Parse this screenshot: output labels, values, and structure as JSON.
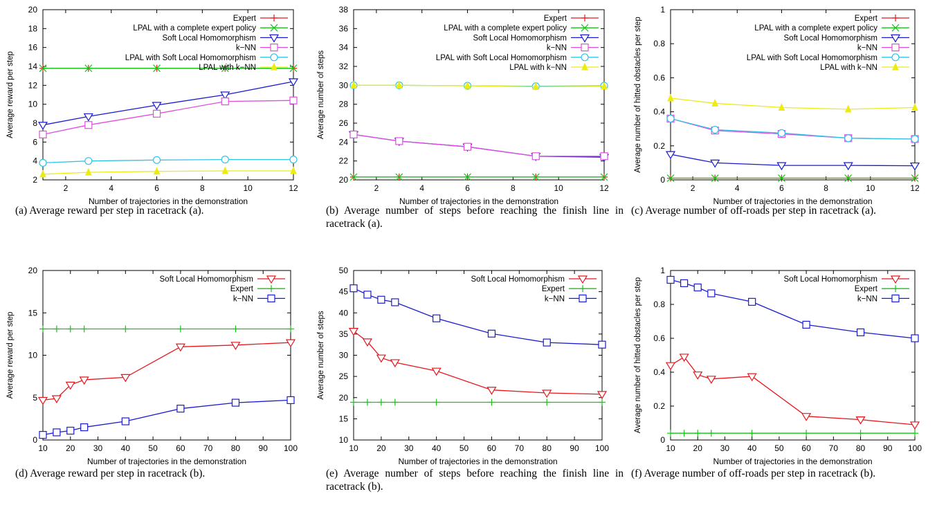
{
  "colors": {
    "red": "#e8161c",
    "green": "#16c316",
    "blue": "#1a1ad0",
    "magenta": "#e14de1",
    "cyan": "#30c4e8",
    "yellow": "#ecec14",
    "frame": "#000000"
  },
  "chart_data": [
    {
      "id": "a",
      "type": "line",
      "caption": "(a) Average reward per step in racetrack (a).",
      "xlabel": "Number of trajectories in the demonstration",
      "ylabel": "Average reward per step",
      "xlim": [
        1,
        12
      ],
      "ylim": [
        2,
        20
      ],
      "xticks": [
        2,
        4,
        6,
        8,
        10,
        12
      ],
      "yticks": [
        2,
        4,
        6,
        8,
        10,
        12,
        14,
        16,
        18,
        20
      ],
      "legend_position": "top-right",
      "grid": false,
      "series": [
        {
          "name": "Expert",
          "marker": "plus",
          "color": "#e8161c",
          "x": [
            1,
            3,
            6,
            9,
            12
          ],
          "y": [
            13.8,
            13.8,
            13.8,
            13.8,
            13.8
          ]
        },
        {
          "name": "LPAL with a complete expert policy",
          "marker": "cross",
          "color": "#16c316",
          "x": [
            1,
            3,
            6,
            9,
            12
          ],
          "y": [
            13.8,
            13.8,
            13.8,
            13.8,
            13.8
          ]
        },
        {
          "name": "Soft Local Homomorphism",
          "marker": "triangle-down",
          "color": "#1a1ad0",
          "x": [
            1,
            3,
            6,
            9,
            12
          ],
          "y": [
            7.8,
            8.7,
            9.9,
            11.0,
            12.4
          ]
        },
        {
          "name": "k−NN",
          "marker": "square",
          "color": "#e14de1",
          "x": [
            1,
            3,
            6,
            9,
            12
          ],
          "y": [
            6.8,
            7.8,
            9.0,
            10.3,
            10.4
          ]
        },
        {
          "name": "LPAL with Soft Local Homomorphism",
          "marker": "circle",
          "color": "#30c4e8",
          "x": [
            1,
            3,
            6,
            9,
            12
          ],
          "y": [
            3.8,
            4.0,
            4.1,
            4.15,
            4.15
          ]
        },
        {
          "name": "LPAL with k−NN",
          "marker": "triangle-up-filled",
          "color": "#ecec14",
          "x": [
            1,
            3,
            6,
            9,
            12
          ],
          "y": [
            2.6,
            2.8,
            2.9,
            2.95,
            2.95
          ]
        }
      ]
    },
    {
      "id": "b",
      "type": "line",
      "caption": "(b) Average number of steps before reaching the finish line in racetrack (a).",
      "xlabel": "Number of trajectories in the demonstration",
      "ylabel": "Average number of steps",
      "xlim": [
        1,
        12
      ],
      "ylim": [
        20,
        38
      ],
      "xticks": [
        2,
        4,
        6,
        8,
        10,
        12
      ],
      "yticks": [
        20,
        22,
        24,
        26,
        28,
        30,
        32,
        34,
        36,
        38
      ],
      "legend_position": "top-right",
      "grid": false,
      "series": [
        {
          "name": "Expert",
          "marker": "plus",
          "color": "#e8161c",
          "x": [
            1,
            3,
            6,
            9,
            12
          ],
          "y": [
            20.3,
            20.3,
            20.3,
            20.3,
            20.3
          ]
        },
        {
          "name": "LPAL with a complete expert policy",
          "marker": "cross",
          "color": "#16c316",
          "x": [
            1,
            3,
            6,
            9,
            12
          ],
          "y": [
            20.3,
            20.3,
            20.3,
            20.3,
            20.3
          ]
        },
        {
          "name": "Soft Local Homomorphism",
          "marker": "triangle-down",
          "color": "#1a1ad0",
          "x": [
            1,
            3,
            6,
            9,
            12
          ],
          "y": [
            24.8,
            24.1,
            23.5,
            22.5,
            22.4
          ]
        },
        {
          "name": "k−NN",
          "marker": "square",
          "color": "#e14de1",
          "x": [
            1,
            3,
            6,
            9,
            12
          ],
          "y": [
            24.8,
            24.1,
            23.5,
            22.5,
            22.5
          ]
        },
        {
          "name": "LPAL with Soft Local Homomorphism",
          "marker": "circle",
          "color": "#30c4e8",
          "x": [
            1,
            3,
            6,
            9,
            12
          ],
          "y": [
            30.0,
            30.0,
            29.95,
            29.9,
            29.95
          ]
        },
        {
          "name": "LPAL with k−NN",
          "marker": "triangle-up-filled",
          "color": "#ecec14",
          "x": [
            1,
            3,
            6,
            9,
            12
          ],
          "y": [
            30.0,
            30.0,
            29.95,
            29.85,
            29.9
          ]
        }
      ]
    },
    {
      "id": "c",
      "type": "line",
      "caption": "(c) Average number of off-roads per step in racetrack (a).",
      "xlabel": "Number of trajectories in the demonstration",
      "ylabel": "Average number of hitted obstacles per step",
      "xlim": [
        1,
        12
      ],
      "ylim": [
        0,
        1
      ],
      "xticks": [
        2,
        4,
        6,
        8,
        10,
        12
      ],
      "yticks": [
        0,
        0.2,
        0.4,
        0.6,
        0.8,
        1
      ],
      "legend_position": "top-right",
      "grid": false,
      "series": [
        {
          "name": "Expert",
          "marker": "plus",
          "color": "#e8161c",
          "x": [
            1,
            3,
            6,
            9,
            12
          ],
          "y": [
            0.01,
            0.01,
            0.01,
            0.01,
            0.01
          ]
        },
        {
          "name": "LPAL with a complete expert policy",
          "marker": "cross",
          "color": "#16c316",
          "x": [
            1,
            3,
            6,
            9,
            12
          ],
          "y": [
            0.01,
            0.01,
            0.01,
            0.01,
            0.01
          ]
        },
        {
          "name": "Soft Local Homomorphism",
          "marker": "triangle-down",
          "color": "#1a1ad0",
          "x": [
            1,
            3,
            6,
            9,
            12
          ],
          "y": [
            0.15,
            0.1,
            0.085,
            0.085,
            0.083
          ]
        },
        {
          "name": "k−NN",
          "marker": "square",
          "color": "#e14de1",
          "x": [
            1,
            3,
            6,
            9,
            12
          ],
          "y": [
            0.36,
            0.29,
            0.27,
            0.245,
            0.24
          ]
        },
        {
          "name": "LPAL with Soft Local Homomorphism",
          "marker": "circle",
          "color": "#30c4e8",
          "x": [
            1,
            3,
            6,
            9,
            12
          ],
          "y": [
            0.36,
            0.295,
            0.275,
            0.245,
            0.24
          ]
        },
        {
          "name": "LPAL with k−NN",
          "marker": "triangle-up-filled",
          "color": "#ecec14",
          "x": [
            1,
            3,
            6,
            9,
            12
          ],
          "y": [
            0.48,
            0.45,
            0.425,
            0.415,
            0.425
          ]
        }
      ]
    },
    {
      "id": "d",
      "type": "line",
      "caption": "(d) Average reward per step in racetrack (b).",
      "xlabel": "Number of trajectories in the demonstration",
      "ylabel": "Average reward per step",
      "xlim": [
        10,
        100
      ],
      "ylim": [
        0,
        20
      ],
      "xticks": [
        10,
        20,
        30,
        40,
        50,
        60,
        70,
        80,
        90,
        100
      ],
      "yticks": [
        0,
        5,
        10,
        15,
        20
      ],
      "legend_position": "top-right",
      "grid": false,
      "series": [
        {
          "name": "Soft Local Homomorphism",
          "marker": "triangle-down",
          "color": "#e8161c",
          "x": [
            10,
            15,
            20,
            25,
            40,
            60,
            80,
            100
          ],
          "y": [
            4.7,
            4.9,
            6.5,
            7.1,
            7.4,
            11.0,
            11.2,
            11.5
          ]
        },
        {
          "name": "Expert",
          "marker": "plus",
          "color": "#16c316",
          "x": [
            10,
            15,
            20,
            25,
            40,
            60,
            80,
            100
          ],
          "y": [
            13.1,
            13.1,
            13.1,
            13.1,
            13.1,
            13.1,
            13.1,
            13.1
          ]
        },
        {
          "name": "k−NN",
          "marker": "square",
          "color": "#1a1ad0",
          "x": [
            10,
            15,
            20,
            25,
            40,
            60,
            80,
            100
          ],
          "y": [
            0.6,
            0.9,
            1.1,
            1.5,
            2.2,
            3.7,
            4.4,
            4.7
          ]
        }
      ]
    },
    {
      "id": "e",
      "type": "line",
      "caption": "(e) Average number of steps before reaching the finish line in racetrack (b).",
      "xlabel": "Number of trajectories in the demonstration",
      "ylabel": "Average number of steps",
      "xlim": [
        10,
        100
      ],
      "ylim": [
        10,
        50
      ],
      "xticks": [
        10,
        20,
        30,
        40,
        50,
        60,
        70,
        80,
        90,
        100
      ],
      "yticks": [
        10,
        15,
        20,
        25,
        30,
        35,
        40,
        45,
        50
      ],
      "legend_position": "top-right",
      "grid": false,
      "series": [
        {
          "name": "Soft Local Homomorphism",
          "marker": "triangle-down",
          "color": "#e8161c",
          "x": [
            10,
            15,
            20,
            25,
            40,
            60,
            80,
            100
          ],
          "y": [
            35.7,
            33.2,
            29.4,
            28.3,
            26.3,
            21.8,
            21.1,
            20.8
          ]
        },
        {
          "name": "Expert",
          "marker": "plus",
          "color": "#16c316",
          "x": [
            10,
            15,
            20,
            25,
            40,
            60,
            80,
            100
          ],
          "y": [
            18.9,
            18.9,
            18.9,
            18.9,
            18.9,
            18.9,
            18.9,
            18.9
          ]
        },
        {
          "name": "k−NN",
          "marker": "square",
          "color": "#1a1ad0",
          "x": [
            10,
            15,
            20,
            25,
            40,
            60,
            80,
            100
          ],
          "y": [
            45.8,
            44.3,
            43.1,
            42.5,
            38.7,
            35.1,
            33.0,
            32.5
          ]
        }
      ]
    },
    {
      "id": "f",
      "type": "line",
      "caption": "(f) Average number of off-roads per step in racetrack (b).",
      "xlabel": "Number of trajectories in the demonstration",
      "ylabel": "Average number of hitted obstacles per step",
      "xlim": [
        10,
        100
      ],
      "ylim": [
        0,
        1
      ],
      "xticks": [
        10,
        20,
        30,
        40,
        50,
        60,
        70,
        80,
        90,
        100
      ],
      "yticks": [
        0,
        0.2,
        0.4,
        0.6,
        0.8,
        1
      ],
      "legend_position": "top-right",
      "grid": false,
      "series": [
        {
          "name": "Soft Local Homomorphism",
          "marker": "triangle-down",
          "color": "#e8161c",
          "x": [
            10,
            15,
            20,
            25,
            40,
            60,
            80,
            100
          ],
          "y": [
            0.44,
            0.49,
            0.385,
            0.36,
            0.375,
            0.14,
            0.12,
            0.09
          ]
        },
        {
          "name": "Expert",
          "marker": "plus",
          "color": "#16c316",
          "x": [
            10,
            15,
            20,
            25,
            40,
            60,
            80,
            100
          ],
          "y": [
            0.04,
            0.04,
            0.04,
            0.04,
            0.04,
            0.04,
            0.04,
            0.04
          ]
        },
        {
          "name": "k−NN",
          "marker": "square",
          "color": "#1a1ad0",
          "x": [
            10,
            15,
            20,
            25,
            40,
            60,
            80,
            100
          ],
          "y": [
            0.945,
            0.925,
            0.9,
            0.865,
            0.815,
            0.68,
            0.635,
            0.6
          ]
        }
      ]
    }
  ]
}
